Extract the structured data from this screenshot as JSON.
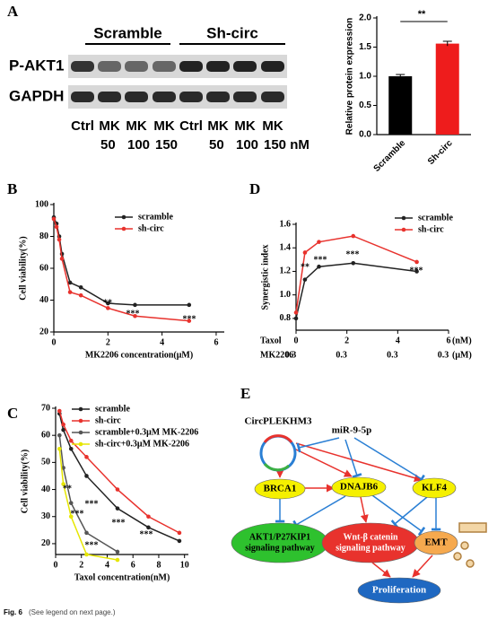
{
  "panel_labels": [
    "A",
    "B",
    "C",
    "D",
    "E"
  ],
  "blot": {
    "groups": [
      "Scramble",
      "Sh-circ"
    ],
    "rows": [
      "P-AKT1",
      "GAPDH"
    ],
    "lanes": [
      "Ctrl",
      "MK",
      "MK",
      "MK",
      "Ctrl",
      "MK",
      "MK",
      "MK"
    ],
    "doses": [
      "50",
      "100",
      "150",
      "50",
      "100",
      "150 nM"
    ]
  },
  "chart_data": [
    {
      "type": "bar",
      "ylabel": "Relative protein expression",
      "categories": [
        "Scramble",
        "Sh-circ"
      ],
      "values": [
        1.0,
        1.56
      ],
      "errors": [
        0.03,
        0.04
      ],
      "colors": [
        "#000000",
        "#ee1c1c"
      ],
      "ylim": [
        0,
        2
      ],
      "yticks": [
        {
          "value": 0,
          "label": "0.0"
        },
        {
          "value": 0.5,
          "label": "0.5"
        },
        {
          "value": 1,
          "label": "1.0"
        },
        {
          "value": 1.5,
          "label": "1.5"
        },
        {
          "value": 2,
          "label": "2.0"
        }
      ],
      "annotations": [
        "**"
      ]
    },
    {
      "type": "line",
      "xlabel": "MK2206 concentration(μM)",
      "ylabel": "Cell viability(%)",
      "x": [
        0,
        0.1,
        0.2,
        0.3,
        0.6,
        1,
        2,
        3,
        5
      ],
      "series": [
        {
          "name": "scramble",
          "color": "#222222",
          "values": [
            92,
            88,
            80,
            69,
            51,
            48,
            38,
            37,
            37
          ]
        },
        {
          "name": "sh-circ",
          "color": "#e8322d",
          "values": [
            91,
            86,
            78,
            66,
            45,
            43,
            35,
            30,
            27
          ]
        }
      ],
      "xlim": [
        0,
        6.3
      ],
      "ylim": [
        20,
        100
      ],
      "xticks": [
        0,
        2,
        4,
        6
      ],
      "yticks": [
        20,
        40,
        60,
        80,
        100
      ],
      "annotations": [
        "**",
        "***",
        "***"
      ]
    },
    {
      "type": "line",
      "xlabel": "Taxol concentration(nM)",
      "ylabel": "Cell viability(%)",
      "x": [
        0.3,
        0.6,
        1.2,
        2.4,
        4.8,
        7.2,
        9.6
      ],
      "series": [
        {
          "name": "scramble",
          "color": "#222222",
          "values": [
            68,
            62,
            55,
            45,
            33,
            26,
            21
          ]
        },
        {
          "name": "sh-circ",
          "color": "#e8322d",
          "values": [
            69,
            64,
            58,
            52,
            40,
            30,
            24
          ]
        },
        {
          "name": "scramble+0.3μM MK-2206",
          "color": "#555555",
          "values": [
            60,
            48,
            35,
            24,
            17,
            null,
            null
          ]
        },
        {
          "name": "sh-circ+0.3μM MK-2206",
          "color": "#e6e600",
          "values": [
            55,
            42,
            30,
            16,
            14,
            null,
            null
          ]
        }
      ],
      "xlim": [
        0,
        10.3
      ],
      "ylim": [
        16,
        70
      ],
      "xticks": [
        0,
        2,
        4,
        6,
        8,
        10
      ],
      "yticks": [
        20,
        30,
        40,
        50,
        60,
        70
      ],
      "annotations": [
        "**",
        "***",
        "***",
        "***",
        "***",
        "***"
      ]
    },
    {
      "type": "line",
      "ylabel": "Synergistic index",
      "x": [
        0,
        0.35,
        0.9,
        2.25,
        4.75
      ],
      "series": [
        {
          "name": "scramble",
          "color": "#222222",
          "values": [
            0.8,
            1.13,
            1.24,
            1.27,
            1.2
          ]
        },
        {
          "name": "sh-circ",
          "color": "#e8322d",
          "values": [
            0.85,
            1.36,
            1.45,
            1.5,
            1.28
          ]
        }
      ],
      "xlim": [
        0,
        6
      ],
      "ylim": [
        0.7,
        1.6
      ],
      "xticks": [
        0,
        2,
        4,
        6
      ],
      "yticks": [
        0.8,
        {
          "value": 1,
          "label": "1.0"
        },
        1.2,
        1.4,
        1.6
      ],
      "xrow1": {
        "label": "Taxol",
        "unit": "(nM)"
      },
      "xrow2": {
        "label": "MK2206",
        "values": [
          0.3,
          0.3,
          0.3,
          0.3
        ],
        "unit": "(μM)"
      },
      "annotations": [
        "**",
        "***",
        "***",
        "***"
      ]
    }
  ],
  "diagram": {
    "nodes": [
      {
        "lines": [
          "CircPLEKHM3"
        ]
      },
      {
        "lines": [
          "miR-9-5p"
        ]
      },
      {
        "lines": [
          "BRCA1"
        ]
      },
      {
        "lines": [
          "DNAJB6"
        ]
      },
      {
        "lines": [
          "KLF4"
        ]
      },
      {
        "lines": [
          "AKT1/P27KIP1",
          "signaling pathway"
        ]
      },
      {
        "lines": [
          "Wnt-β catenin",
          "signaling pathway"
        ]
      },
      {
        "lines": [
          "EMT"
        ]
      },
      {
        "lines": [
          "Proliferation"
        ]
      }
    ]
  },
  "caption": {
    "label": "Fig. 6",
    "text": "(See legend on next page.)"
  }
}
